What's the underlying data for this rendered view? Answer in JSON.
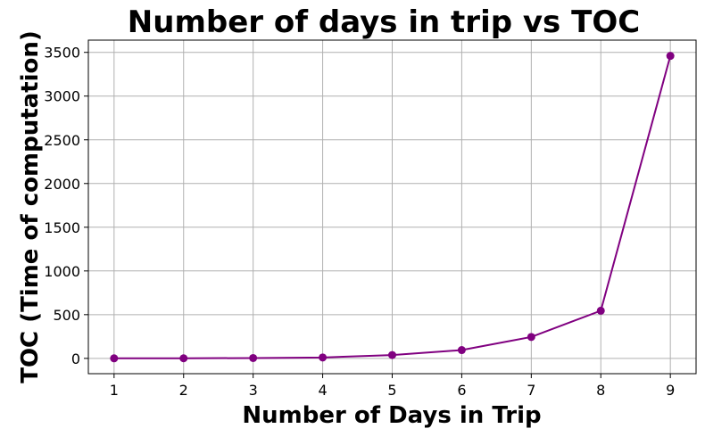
{
  "chart_data": {
    "type": "line",
    "title": "Number of days in trip vs TOC",
    "xlabel": "Number of Days in Trip",
    "ylabel": "TOC (Time of computation)",
    "x": [
      1,
      2,
      3,
      4,
      5,
      6,
      7,
      8,
      9
    ],
    "series": [
      {
        "values": [
          0.5,
          1,
          4,
          10,
          38,
          95,
          245,
          545,
          3460
        ]
      }
    ],
    "xlim": [
      0.63,
      9.37
    ],
    "ylim": [
      -175,
      3640
    ],
    "xticks": [
      "1",
      "2",
      "3",
      "4",
      "5",
      "6",
      "7",
      "8",
      "9"
    ],
    "yticks": [
      "0",
      "500",
      "1000",
      "1500",
      "2000",
      "2500",
      "3000",
      "3500"
    ],
    "grid": true,
    "line_color": "#800080",
    "marker": "circle"
  }
}
